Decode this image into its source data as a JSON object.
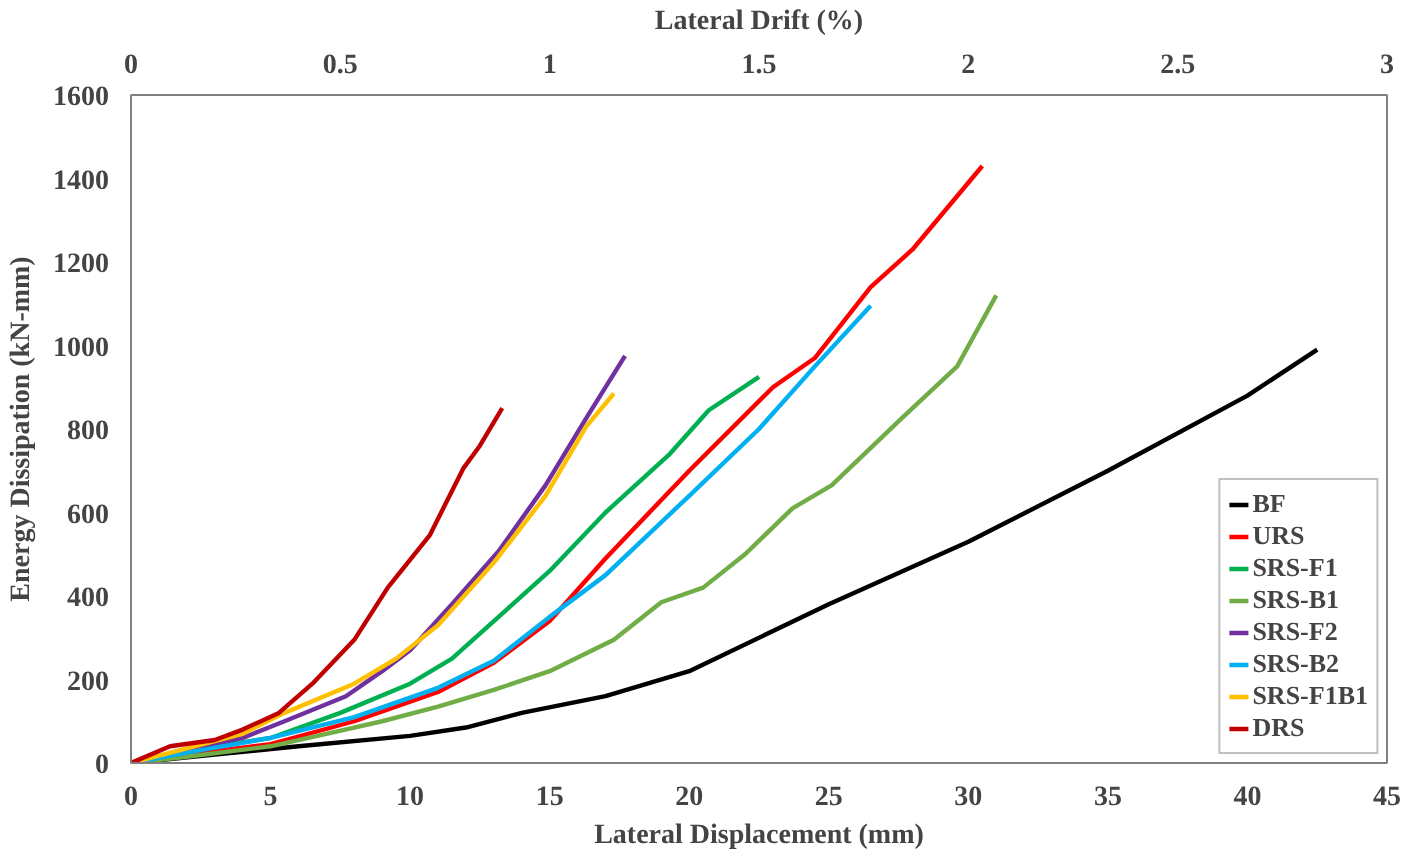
{
  "chart_data": {
    "type": "line",
    "xlabel": "Lateral Displacement (mm)",
    "ylabel": "Energy Dissipation (kN-mm)",
    "x2label": "Lateral Drift (%)",
    "xlim": [
      0,
      45
    ],
    "xticks": [
      0,
      5,
      10,
      15,
      20,
      25,
      30,
      35,
      40,
      45
    ],
    "ylim": [
      0,
      1600
    ],
    "yticks": [
      0,
      200,
      400,
      600,
      800,
      1000,
      1200,
      1400,
      1600
    ],
    "x2lim": [
      0,
      3
    ],
    "x2ticks": [
      0,
      0.5,
      1,
      1.5,
      2,
      2.5,
      3
    ],
    "grid": false,
    "legend": "bottom right",
    "marker": "none",
    "line_style": "solid",
    "series": [
      {
        "name": "BF",
        "color": "#000000",
        "x": [
          0,
          3,
          6,
          10,
          12,
          14,
          17,
          20,
          25,
          30,
          35,
          40,
          42.5
        ],
        "values": [
          0,
          20,
          40,
          65,
          85,
          120,
          160,
          220,
          380,
          530,
          700,
          880,
          990
        ]
      },
      {
        "name": "URS",
        "color": "#ff0000",
        "x": [
          0,
          2,
          5,
          8,
          11,
          13,
          15,
          17,
          20,
          23,
          24.5,
          26.5,
          28,
          30.5
        ],
        "values": [
          0,
          20,
          45,
          100,
          170,
          240,
          340,
          490,
          700,
          900,
          970,
          1140,
          1230,
          1430
        ]
      },
      {
        "name": "SRS-F1",
        "color": "#00b050",
        "x": [
          0,
          2,
          5,
          7.5,
          10,
          11.5,
          13.5,
          15,
          17,
          19.3,
          20.7,
          22.5
        ],
        "values": [
          0,
          30,
          60,
          120,
          190,
          250,
          370,
          460,
          600,
          740,
          845,
          925
        ]
      },
      {
        "name": "SRS-B1",
        "color": "#70ad47",
        "x": [
          0,
          2,
          5,
          7,
          9,
          11,
          13,
          15,
          17.3,
          19,
          20.5,
          22,
          23.7,
          25.1,
          27.6,
          29.6,
          31
        ],
        "values": [
          0,
          15,
          40,
          70,
          100,
          135,
          175,
          220,
          295,
          385,
          420,
          500,
          610,
          665,
          825,
          950,
          1120
        ]
      },
      {
        "name": "SRS-F2",
        "color": "#7030a0",
        "x": [
          0,
          2,
          4,
          5.5,
          7.7,
          9,
          10,
          11.5,
          13.2,
          14.85,
          16.3,
          17.7
        ],
        "values": [
          0,
          30,
          60,
          100,
          160,
          220,
          270,
          380,
          510,
          665,
          825,
          975
        ]
      },
      {
        "name": "SRS-B2",
        "color": "#00b0f0",
        "x": [
          0,
          2,
          5,
          8,
          11,
          13,
          15,
          17,
          20,
          22.5,
          24.5,
          26.5
        ],
        "values": [
          0,
          25,
          60,
          110,
          180,
          245,
          350,
          450,
          640,
          800,
          950,
          1095
        ]
      },
      {
        "name": "SRS-F1B1",
        "color": "#ffc000",
        "x": [
          0,
          2,
          4,
          5.5,
          8,
          9.5,
          11,
          13,
          14.85,
          16.3,
          17.3
        ],
        "values": [
          0,
          35,
          70,
          120,
          190,
          250,
          330,
          480,
          640,
          805,
          885
        ]
      },
      {
        "name": "DRS",
        "color": "#c00000",
        "x": [
          0,
          1.4,
          3,
          4,
          5.3,
          6.5,
          8,
          9.2,
          10.7,
          11.9,
          12.5,
          13.3
        ],
        "values": [
          0,
          40,
          55,
          80,
          120,
          190,
          295,
          420,
          545,
          705,
          760,
          850
        ]
      }
    ]
  }
}
